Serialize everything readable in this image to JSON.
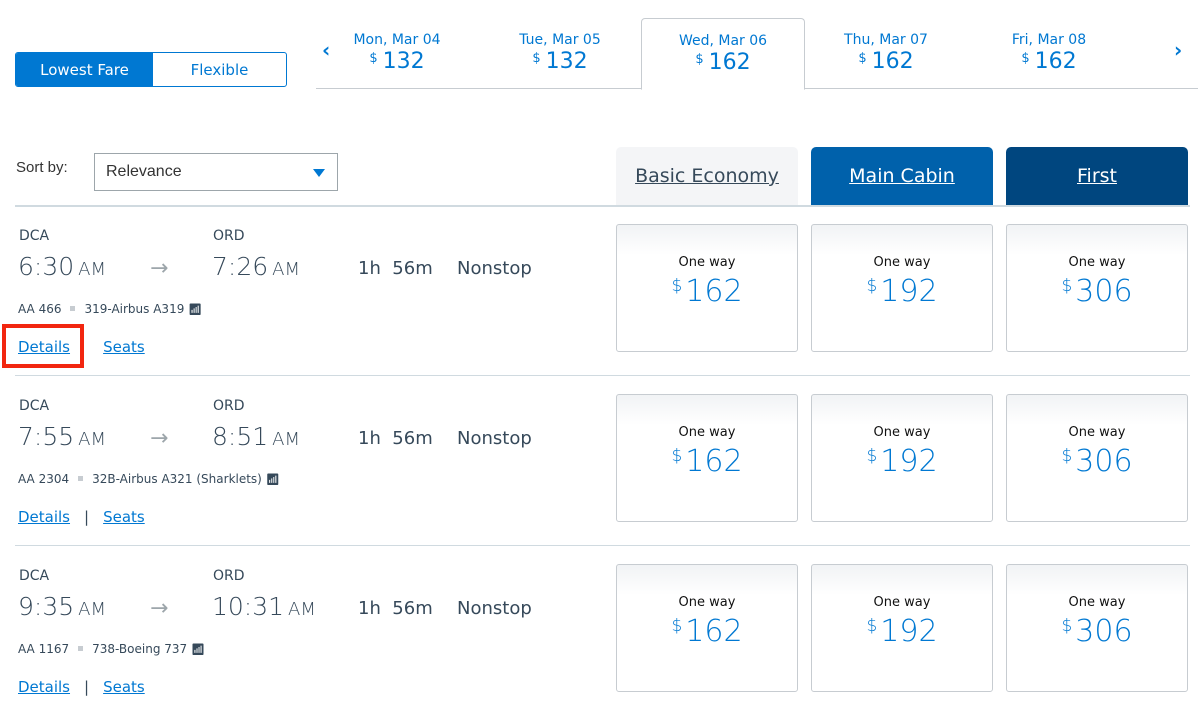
{
  "fare_toggle": {
    "options": [
      "Lowest Fare",
      "Flexible"
    ],
    "selected": "Lowest Fare"
  },
  "dates": [
    {
      "day": "Mon, Mar 04",
      "currency": "$",
      "price": "132"
    },
    {
      "day": "Tue, Mar 05",
      "currency": "$",
      "price": "132"
    },
    {
      "day": "Wed, Mar 06",
      "currency": "$",
      "price": "162",
      "active": true
    },
    {
      "day": "Thu, Mar 07",
      "currency": "$",
      "price": "162"
    },
    {
      "day": "Fri, Mar 08",
      "currency": "$",
      "price": "162"
    }
  ],
  "nav": {
    "prev": "‹",
    "next": "›"
  },
  "sort": {
    "label": "Sort by:",
    "value": "Relevance"
  },
  "cabins": [
    {
      "label": "Basic Economy",
      "color": "#f4f5f7"
    },
    {
      "label": "Main Cabin",
      "color": "#0061ab"
    },
    {
      "label": "First",
      "color": "#00467f"
    }
  ],
  "flights": [
    {
      "from": "DCA",
      "to": "ORD",
      "dep": "6:30",
      "dep_ampm": "AM",
      "arr": "7:26",
      "arr_ampm": "AM",
      "duration": "1h  56m",
      "stops": "Nonstop",
      "flight": "AA 466",
      "aircraft": "319-Airbus A319",
      "details": "Details",
      "seats": "Seats",
      "sep": "|",
      "fares": [
        {
          "label": "One way",
          "cur": "$",
          "price": "162"
        },
        {
          "label": "One way",
          "cur": "$",
          "price": "192"
        },
        {
          "label": "One way",
          "cur": "$",
          "price": "306"
        }
      ]
    },
    {
      "from": "DCA",
      "to": "ORD",
      "dep": "7:55",
      "dep_ampm": "AM",
      "arr": "8:51",
      "arr_ampm": "AM",
      "duration": "1h  56m",
      "stops": "Nonstop",
      "flight": "AA 2304",
      "aircraft": "32B-Airbus A321 (Sharklets)",
      "details": "Details",
      "seats": "Seats",
      "sep": "|",
      "fares": [
        {
          "label": "One way",
          "cur": "$",
          "price": "162"
        },
        {
          "label": "One way",
          "cur": "$",
          "price": "192"
        },
        {
          "label": "One way",
          "cur": "$",
          "price": "306"
        }
      ]
    },
    {
      "from": "DCA",
      "to": "ORD",
      "dep": "9:35",
      "dep_ampm": "AM",
      "arr": "10:31",
      "arr_ampm": "AM",
      "duration": "1h  56m",
      "stops": "Nonstop",
      "flight": "AA 1167",
      "aircraft": "738-Boeing 737",
      "details": "Details",
      "seats": "Seats",
      "sep": "|",
      "fares": [
        {
          "label": "One way",
          "cur": "$",
          "price": "162"
        },
        {
          "label": "One way",
          "cur": "$",
          "price": "192"
        },
        {
          "label": "One way",
          "cur": "$",
          "price": "306"
        }
      ]
    }
  ],
  "highlight_color": "#f2260f"
}
